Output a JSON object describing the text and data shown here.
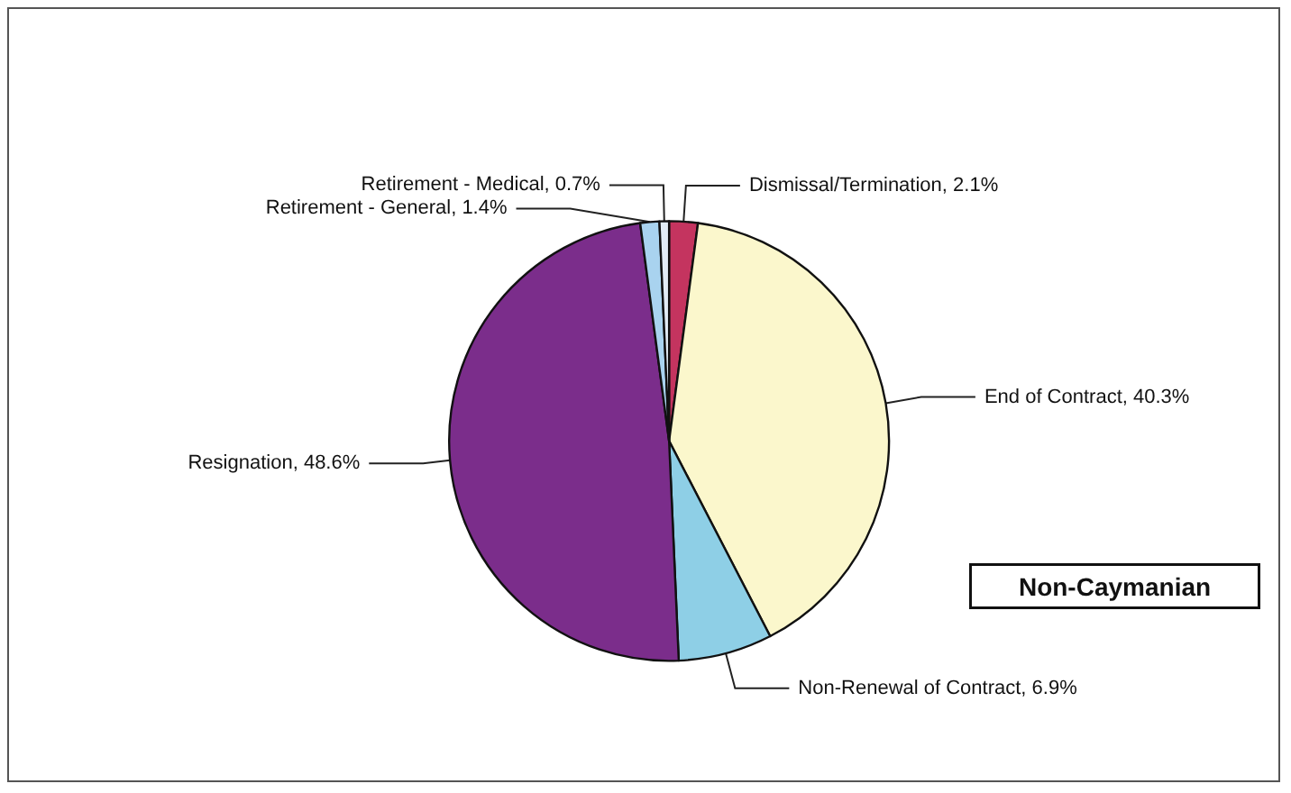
{
  "chart_data": {
    "type": "pie",
    "categories": [
      "Dismissal/Termination",
      "End of Contract",
      "Non-Renewal of Contract",
      "Resignation",
      "Retirement - General",
      "Retirement - Medical"
    ],
    "values": [
      2.1,
      40.3,
      6.9,
      48.6,
      1.4,
      0.7
    ],
    "value_labels": [
      "2.1%",
      "40.3%",
      "6.9%",
      "48.6%",
      "1.4%",
      "0.7%"
    ],
    "colors": [
      "#c4345f",
      "#fbf7cc",
      "#8ecfe6",
      "#7b2d8b",
      "#a9d3ef",
      "#e2ecf6"
    ],
    "annotations": [
      "Non-Caymanian"
    ],
    "legend": false
  }
}
